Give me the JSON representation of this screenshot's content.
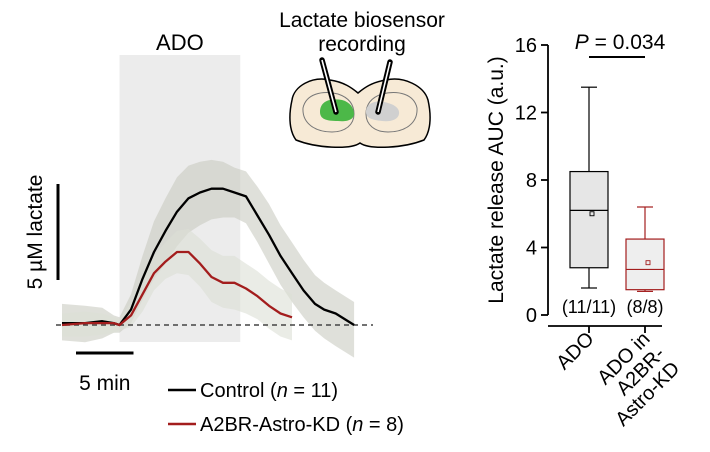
{
  "chart_data": [
    {
      "type": "line",
      "time_unit": "min",
      "scale_bars": {
        "y": {
          "value": 5,
          "label": "5 µM lactate"
        },
        "x": {
          "value": 5,
          "label": "5 min"
        }
      },
      "stimulus": {
        "label": "ADO",
        "start": 5,
        "end": 15.5
      },
      "baseline": 0,
      "inset_label_line1": "Lactate biosensor",
      "inset_label_line2": "recording",
      "legend": [
        {
          "name": "Control",
          "n_label": "n",
          "n_value": "11",
          "color": "#000000"
        },
        {
          "name": "A2BR-Astro-KD",
          "n_label": "n",
          "n_value": "8",
          "color": "#a31d1d"
        }
      ],
      "series": [
        {
          "name": "Control",
          "color": "#000000",
          "t": [
            0,
            2,
            3.5,
            4.5,
            5,
            6,
            7,
            8,
            9,
            10,
            11,
            12,
            13,
            14,
            15,
            16,
            17,
            18,
            19,
            20,
            21,
            22,
            22.8,
            23.8,
            25.4
          ],
          "y": [
            0.1,
            0.1,
            0.2,
            0.1,
            0.0,
            0.8,
            2.4,
            3.8,
            4.9,
            5.9,
            6.6,
            6.9,
            7.1,
            7.1,
            6.9,
            6.7,
            5.7,
            4.7,
            3.6,
            2.7,
            1.8,
            1.1,
            0.8,
            0.6,
            0.0
          ],
          "sem_upper": [
            1.1,
            1.0,
            0.9,
            0.5,
            0.4,
            1.6,
            3.6,
            5.4,
            6.6,
            7.7,
            8.3,
            8.5,
            8.6,
            8.5,
            8.2,
            8.0,
            7.2,
            6.3,
            5.2,
            4.3,
            3.4,
            2.6,
            2.2,
            1.8,
            1.2
          ],
          "sem_lower": [
            -0.8,
            -0.9,
            -0.7,
            -0.4,
            -0.4,
            0.1,
            1.3,
            2.4,
            3.2,
            4.1,
            4.8,
            5.2,
            5.5,
            5.6,
            5.6,
            5.3,
            4.3,
            3.2,
            2.1,
            1.2,
            0.4,
            -0.3,
            -0.7,
            -1.1,
            -1.7
          ]
        },
        {
          "name": "A2BR-Astro-KD",
          "color": "#a31d1d",
          "t": [
            0,
            2,
            3.5,
            4.5,
            5,
            6,
            7,
            8,
            9,
            10,
            11,
            12,
            13,
            14,
            15,
            16,
            17,
            18,
            19,
            20
          ],
          "y": [
            0.0,
            0.1,
            0.1,
            0.1,
            0.0,
            0.5,
            1.6,
            2.7,
            3.3,
            3.8,
            3.8,
            3.2,
            2.5,
            2.2,
            2.2,
            1.9,
            1.5,
            1.0,
            0.6,
            0.4
          ],
          "sem_upper": [
            0.6,
            0.7,
            0.6,
            0.4,
            0.3,
            1.2,
            2.5,
            3.6,
            4.3,
            4.9,
            5.0,
            4.5,
            3.9,
            3.6,
            3.6,
            3.2,
            2.8,
            2.3,
            1.9,
            1.6
          ],
          "sem_lower": [
            -0.6,
            -0.6,
            -0.5,
            -0.4,
            -0.3,
            -0.1,
            0.7,
            1.8,
            2.4,
            2.7,
            2.6,
            2.0,
            1.2,
            0.9,
            0.8,
            0.6,
            0.3,
            -0.2,
            -0.6,
            -0.8
          ]
        }
      ]
    },
    {
      "type": "box",
      "ylabel": "Lactate release AUC (a.u.)",
      "ylim": [
        0,
        16
      ],
      "yticks": [
        0,
        4,
        8,
        12,
        16
      ],
      "categories": [
        "ADO",
        "ADO in A2BR-Astro-KD"
      ],
      "category_label_lines": [
        [
          "ADO"
        ],
        [
          "ADO in",
          "A2BR-",
          "Astro-KD"
        ]
      ],
      "significance": {
        "prefix": "P",
        "text": " = 0.034"
      },
      "boxes": [
        {
          "name": "ADO",
          "min": 1.6,
          "q1": 2.8,
          "median": 6.2,
          "q3": 8.5,
          "max": 13.5,
          "mean": 6.0,
          "n_label": "(11/11)",
          "color": "#000000",
          "fill": "#e6e6e6"
        },
        {
          "name": "ADO in A2BR-Astro-KD",
          "min": 1.4,
          "q1": 1.5,
          "median": 2.7,
          "q3": 4.5,
          "max": 6.4,
          "mean": 3.1,
          "n_label": "(8/8)",
          "color": "#a31d1d",
          "fill": "#eeeeee"
        }
      ]
    }
  ]
}
